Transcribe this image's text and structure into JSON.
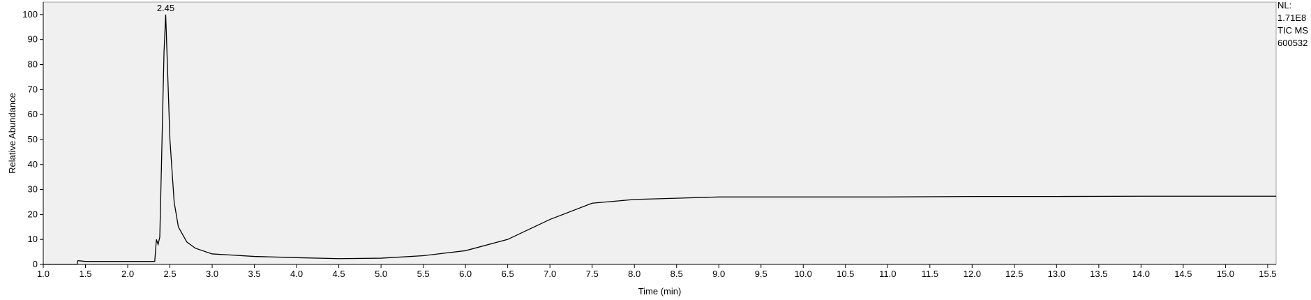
{
  "chart_data": {
    "type": "line",
    "x_label": "Time (min)",
    "y_label": "Relative Abundance",
    "x": [
      1.0,
      1.4,
      1.41,
      1.5,
      2.0,
      2.32,
      2.34,
      2.36,
      2.38,
      2.4,
      2.43,
      2.45,
      2.47,
      2.5,
      2.55,
      2.6,
      2.7,
      2.8,
      3.0,
      3.2,
      3.5,
      4.0,
      4.5,
      5.0,
      5.5,
      6.0,
      6.5,
      7.0,
      7.5,
      8.0,
      8.5,
      9.0,
      10.0,
      11.0,
      12.0,
      13.0,
      14.0,
      15.0,
      15.6
    ],
    "series": [
      {
        "color": "#000000",
        "values": [
          0,
          0,
          1.5,
          1.2,
          1.2,
          1.2,
          10,
          8,
          11,
          40,
          85,
          100,
          80,
          50,
          25,
          15,
          9,
          6.5,
          4.2,
          3.8,
          3.2,
          2.7,
          2.3,
          2.5,
          3.5,
          5.5,
          10,
          18,
          24.5,
          26,
          26.5,
          27,
          27,
          27,
          27.2,
          27.2,
          27.3,
          27.3,
          27.3
        ]
      }
    ],
    "xlim": [
      1.0,
      15.6
    ],
    "ylim": [
      0,
      105
    ],
    "xticks": [
      {
        "value": 1,
        "label": "1.0"
      },
      1.5,
      {
        "value": 2,
        "label": "2.0"
      },
      2.5,
      {
        "value": 3,
        "label": "3.0"
      },
      3.5,
      {
        "value": 4,
        "label": "4.0"
      },
      4.5,
      {
        "value": 5,
        "label": "5.0"
      },
      5.5,
      {
        "value": 6,
        "label": "6.0"
      },
      6.5,
      {
        "value": 7,
        "label": "7.0"
      },
      7.5,
      {
        "value": 8,
        "label": "8.0"
      },
      8.5,
      {
        "value": 9,
        "label": "9.0"
      },
      9.5,
      {
        "value": 10,
        "label": "10.0"
      },
      10.5,
      {
        "value": 11,
        "label": "11.0"
      },
      11.5,
      {
        "value": 12,
        "label": "12.0"
      },
      12.5,
      {
        "value": 13,
        "label": "13.0"
      },
      13.5,
      {
        "value": 14,
        "label": "14.0"
      },
      14.5,
      {
        "value": 15,
        "label": "15.0"
      },
      15.5
    ],
    "yticks": [
      0,
      10,
      20,
      30,
      40,
      50,
      60,
      70,
      80,
      90,
      100
    ],
    "annotations": [
      {
        "label": "2.45",
        "x": 2.45,
        "y": 100
      }
    ],
    "side_text": [
      "NL:",
      "1.71E8",
      "TIC  MS",
      "600532"
    ]
  }
}
